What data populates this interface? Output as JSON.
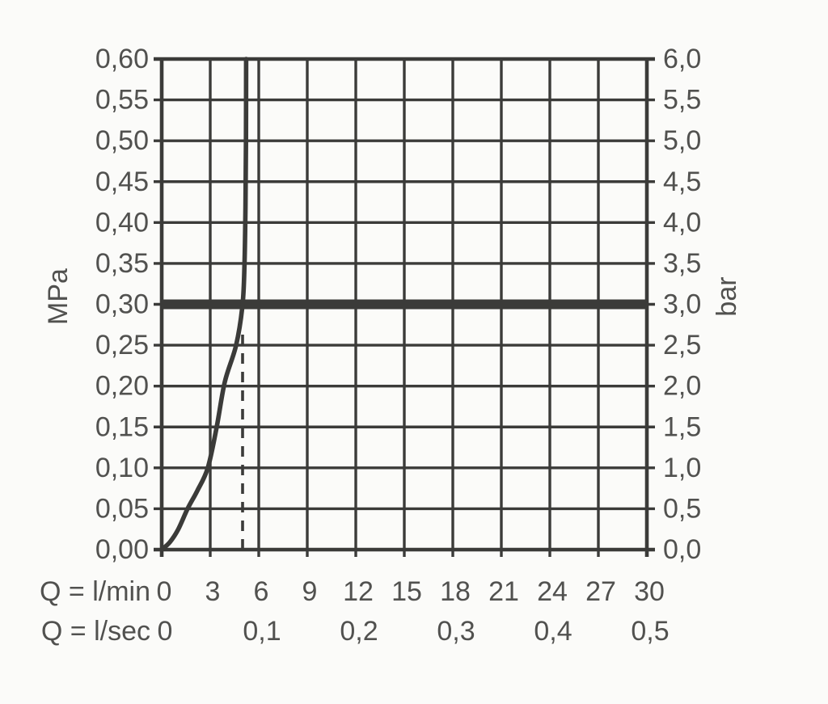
{
  "chart_data": {
    "type": "line",
    "title": "",
    "description": "Flow performance diagram: outlet pressure versus flow rate with flow-limited curve",
    "grid": true,
    "legend": false,
    "x_axis": {
      "row1_label": "Q = l/min",
      "row1_tick_values": [
        0,
        3,
        6,
        9,
        12,
        15,
        18,
        21,
        24,
        27,
        30
      ],
      "row1_tick_labels": [
        "0",
        "3",
        "6",
        "9",
        "12",
        "15",
        "18",
        "21",
        "24",
        "27",
        "30"
      ],
      "row2_label": "Q = l/sec",
      "row2_tick_values_lmin": [
        0,
        6,
        12,
        18,
        24,
        30
      ],
      "row2_tick_labels": [
        "0",
        "0,1",
        "0,2",
        "0,3",
        "0,4",
        "0,5"
      ],
      "range_lmin": [
        0,
        30
      ]
    },
    "y_axis_left": {
      "unit": "MPa",
      "tick_values": [
        0,
        0.05,
        0.1,
        0.15,
        0.2,
        0.25,
        0.3,
        0.35,
        0.4,
        0.45,
        0.5,
        0.55,
        0.6
      ],
      "tick_labels": [
        "0,00",
        "0,05",
        "0,10",
        "0,15",
        "0,20",
        "0,25",
        "0,30",
        "0,35",
        "0,40",
        "0,45",
        "0,50",
        "0,55",
        "0,60"
      ],
      "range": [
        0,
        0.6
      ]
    },
    "y_axis_right": {
      "unit": "bar",
      "tick_values_bar": [
        0,
        0.5,
        1.0,
        1.5,
        2.0,
        2.5,
        3.0,
        3.5,
        4.0,
        4.5,
        5.0,
        5.5,
        6.0
      ],
      "tick_labels": [
        "0,0",
        "0,5",
        "1,0",
        "1,5",
        "2,0",
        "2,5",
        "3,0",
        "3,5",
        "4,0",
        "4,5",
        "5,0",
        "5,5",
        "6,0"
      ],
      "range_bar": [
        0,
        6
      ]
    },
    "series": [
      {
        "name": "flow-curve",
        "points_lmin_mpa": [
          [
            0,
            0
          ],
          [
            0.5,
            0.009
          ],
          [
            1,
            0.024
          ],
          [
            1.6,
            0.05
          ],
          [
            2.2,
            0.072
          ],
          [
            2.85,
            0.1
          ],
          [
            3.4,
            0.15
          ],
          [
            3.9,
            0.205
          ],
          [
            4.6,
            0.25
          ],
          [
            5.0,
            0.3
          ],
          [
            5.12,
            0.35
          ],
          [
            5.18,
            0.42
          ],
          [
            5.21,
            0.5
          ],
          [
            5.22,
            0.6
          ]
        ]
      }
    ],
    "reference_line": {
      "mpa": 0.3,
      "bar": 3.0
    },
    "dashed_guide": {
      "at_lmin": 5.0,
      "from_mpa": 0,
      "to_mpa": 0.27
    }
  },
  "colors": {
    "line": "#3b3b39",
    "text": "#51514f",
    "background": "#fbfbf9"
  }
}
